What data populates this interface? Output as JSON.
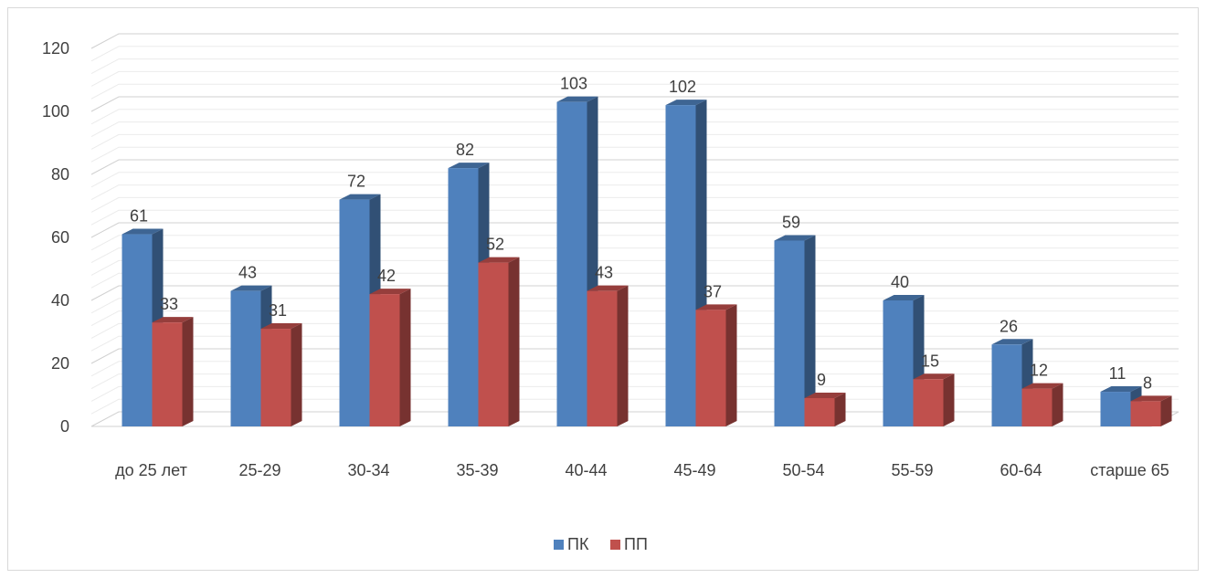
{
  "chart_data": {
    "type": "bar",
    "categories": [
      "до 25 лет",
      "25-29",
      "30-34",
      "35-39",
      "40-44",
      "45-49",
      "50-54",
      "55-59",
      "60-64",
      "старше 65"
    ],
    "series": [
      {
        "name": "ПК",
        "color": "#4f81bd",
        "values": [
          61,
          43,
          72,
          82,
          103,
          102,
          59,
          40,
          26,
          11
        ]
      },
      {
        "name": "ПП",
        "color": "#c0504d",
        "values": [
          33,
          31,
          42,
          52,
          43,
          37,
          9,
          15,
          12,
          8
        ]
      }
    ],
    "yticks": [
      0,
      20,
      40,
      60,
      80,
      100,
      120
    ],
    "ylim": [
      0,
      120
    ],
    "grid": true,
    "legend": "bottom",
    "style": "3d-clustered-column"
  }
}
